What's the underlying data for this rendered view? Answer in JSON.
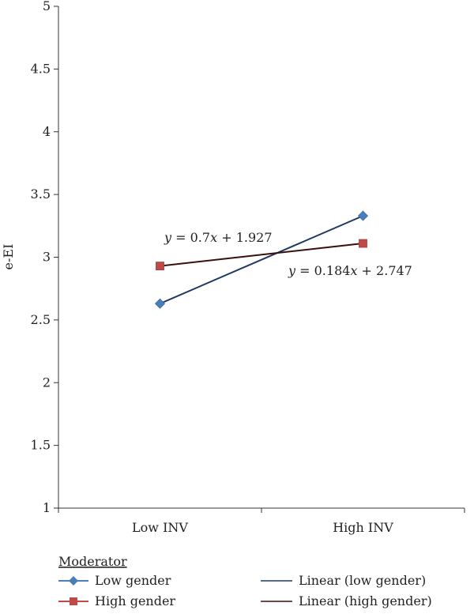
{
  "chart_data": {
    "type": "line",
    "title": "",
    "xlabel": "",
    "ylabel": "e-EI",
    "categories": [
      "Low INV",
      "High INV"
    ],
    "ylim": [
      1,
      5
    ],
    "yticks": [
      1,
      1.5,
      2,
      2.5,
      3,
      3.5,
      4,
      4.5,
      5
    ],
    "grid": false,
    "series": [
      {
        "name": "Low gender",
        "values": [
          2.63,
          3.33
        ],
        "marker": "diamond",
        "color": "#4a7ebb"
      },
      {
        "name": "High gender",
        "values": [
          2.93,
          3.11
        ],
        "marker": "square",
        "color": "#be4b48"
      }
    ],
    "trendlines": [
      {
        "name": "Linear (low gender)",
        "values": [
          2.63,
          3.33
        ],
        "color": "#1f3864"
      },
      {
        "name": "Linear (high gender)",
        "values": [
          2.93,
          3.11
        ],
        "color": "#3b0f0f"
      }
    ],
    "annotations": [
      {
        "text": "y = 0.7x + 1.927",
        "var": "y",
        "rest1": " = 0.7",
        "var2": "x",
        "rest2": " + 1.927"
      },
      {
        "text": "y = 0.184x + 2.747",
        "var": "y",
        "rest1": " = 0.184",
        "var2": "x",
        "rest2": " + 2.747"
      }
    ],
    "legend": {
      "title": "Moderator",
      "placement": "bottom",
      "items": [
        "Low gender",
        "High gender",
        "Linear (low gender)",
        "Linear (high gender)"
      ]
    }
  }
}
